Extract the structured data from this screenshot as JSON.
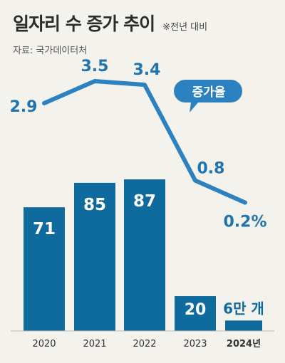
{
  "header": {
    "title": "일자리 수 증가 추이",
    "subtitle": "※전년 대비",
    "source": "자료: 국가데이터처"
  },
  "colors": {
    "bar": "#0f6b9e",
    "line": "#2c82c0",
    "rate_label": "#1f73b0",
    "bar_label": "#ffffff",
    "axis_text": "#333333",
    "badge": "#2c82c0",
    "background": "#f4f2ec"
  },
  "chart_data": [
    {
      "type": "line",
      "series_label": "증가율",
      "categories": [
        "2020",
        "2021",
        "2022",
        "2023",
        "2024"
      ],
      "values": [
        2.9,
        3.5,
        3.4,
        0.8,
        0.2
      ],
      "value_labels": [
        "2.9",
        "3.5",
        "3.4",
        "0.8",
        "0.2%"
      ],
      "ylim": [
        0,
        4
      ]
    },
    {
      "type": "bar",
      "categories": [
        "2020",
        "2021",
        "2022",
        "2023",
        "2024년"
      ],
      "values": [
        71,
        85,
        87,
        20,
        6
      ],
      "value_labels": [
        "71",
        "85",
        "87",
        "20",
        "6만 개"
      ],
      "ylim": [
        0,
        90
      ]
    }
  ]
}
